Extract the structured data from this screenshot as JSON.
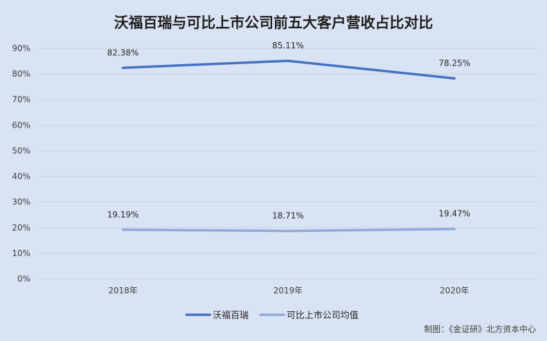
{
  "chart_data": {
    "type": "line",
    "title": "沃福百瑞与可比上市公司前五大客户营收占比对比",
    "categories": [
      "2018年",
      "2019年",
      "2020年"
    ],
    "series": [
      {
        "name": "沃福百瑞",
        "values": [
          82.38,
          85.11,
          78.25
        ],
        "labels": [
          "82.38%",
          "85.11%",
          "78.25%"
        ],
        "color": "#4472c4"
      },
      {
        "name": "可比上市公司均值",
        "values": [
          19.19,
          18.71,
          19.47
        ],
        "labels": [
          "19.19%",
          "18.71%",
          "19.47%"
        ],
        "color": "#8faadc"
      }
    ],
    "ylim": [
      0,
      90
    ],
    "yticks": [
      0,
      10,
      20,
      30,
      40,
      50,
      60,
      70,
      80,
      90
    ],
    "ytick_labels": [
      "0%",
      "10%",
      "20%",
      "30%",
      "40%",
      "50%",
      "60%",
      "70%",
      "80%",
      "90%"
    ],
    "grid": true,
    "legend": "bottom"
  },
  "source": "制图：《金证研》北方资本中心"
}
